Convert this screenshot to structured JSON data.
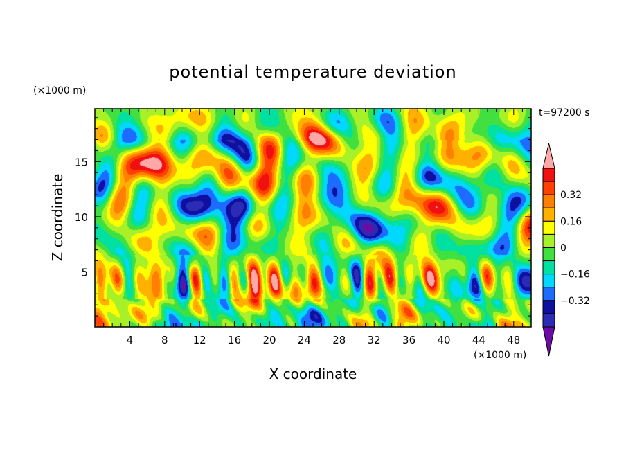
{
  "chart_data": {
    "type": "heatmap",
    "title": "potential temperature deviation",
    "xlabel": "X coordinate",
    "ylabel": "Z coordinate",
    "x_unit_label": "(×1000 m)",
    "y_unit_label": "(×1000 m)",
    "time_label": "t=97200 s",
    "xlim": [
      0,
      50
    ],
    "ylim": [
      0,
      19.8
    ],
    "x_ticks": [
      4,
      8,
      12,
      16,
      20,
      24,
      28,
      32,
      36,
      40,
      44,
      48
    ],
    "y_ticks": [
      5,
      10,
      15
    ],
    "x_minor_step": 1,
    "y_minor_step": 1,
    "colorbar": {
      "levels": [
        -0.48,
        -0.4,
        -0.32,
        -0.24,
        -0.16,
        -0.08,
        0,
        0.08,
        0.16,
        0.24,
        0.32,
        0.4,
        0.48
      ],
      "labeled_levels": [
        0.32,
        0.16,
        0,
        -0.16,
        -0.32
      ],
      "colors": [
        "#6a0da5",
        "#2b2bb5",
        "#1010a0",
        "#1e6cff",
        "#00d8ff",
        "#00e0a0",
        "#40e040",
        "#a8f028",
        "#ffff00",
        "#ffb000",
        "#ff8000",
        "#ff4000",
        "#f01010",
        "#ffa8a8"
      ],
      "extend": "both"
    }
  }
}
